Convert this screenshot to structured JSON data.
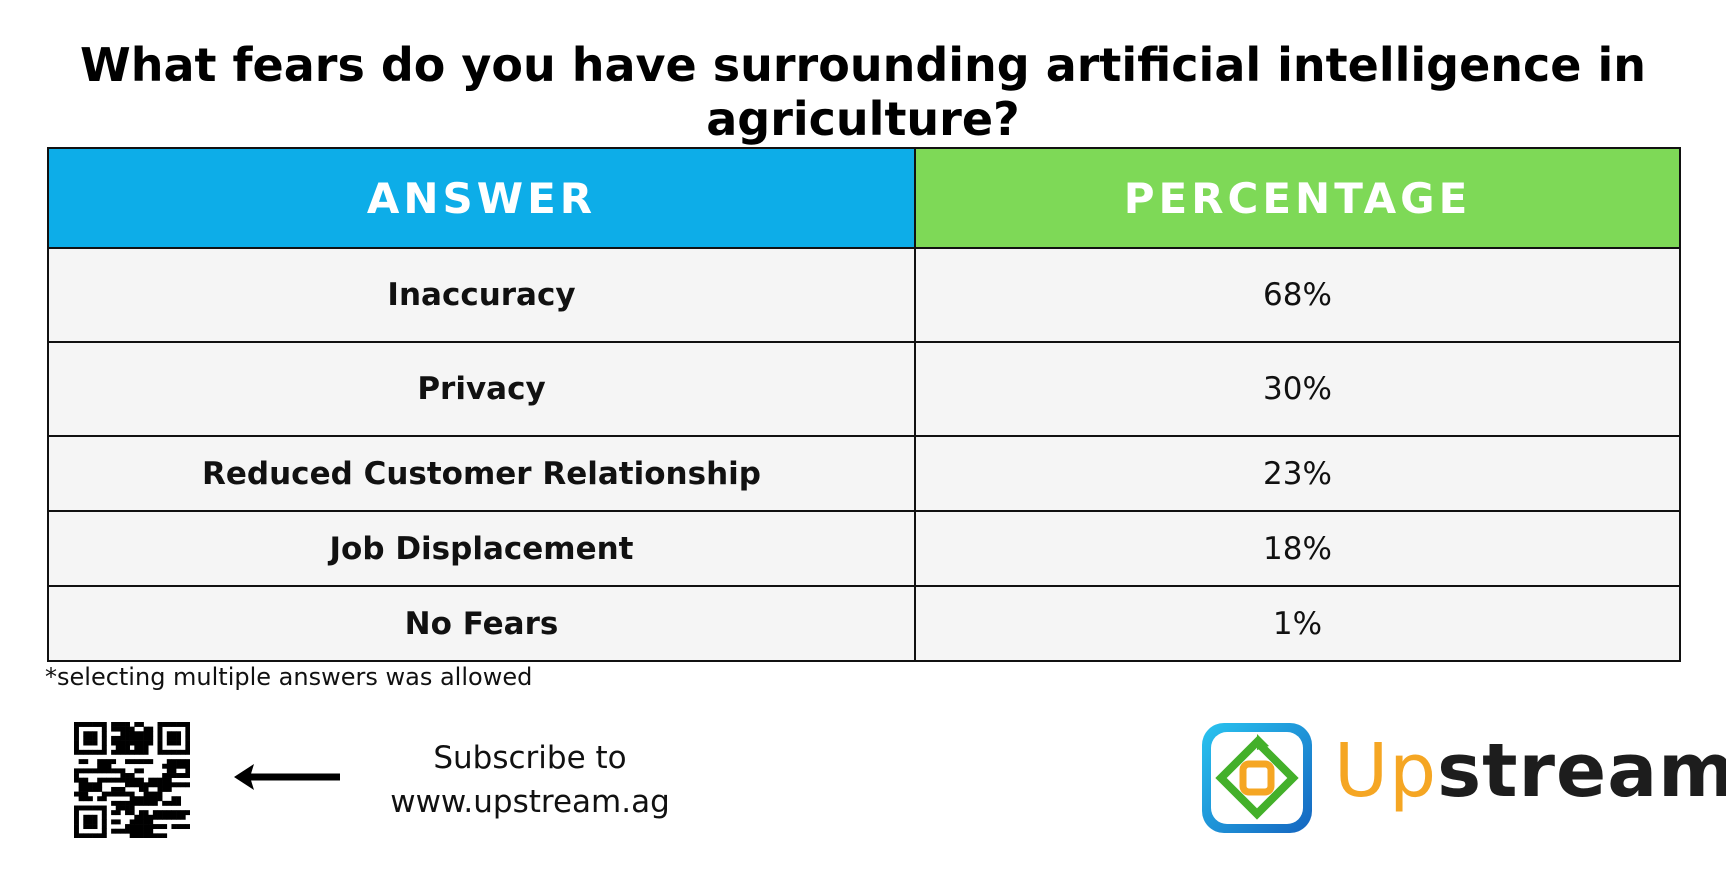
{
  "header": {
    "title": "What fears do you have surrounding artificial intelligence in agriculture?"
  },
  "table": {
    "columns": [
      "ANSWER",
      "PERCENTAGE"
    ],
    "rows": [
      [
        "Inaccuracy",
        "68%"
      ],
      [
        "Privacy",
        "30%"
      ],
      [
        "Reduced Customer Relationship",
        "23%"
      ],
      [
        "Job Displacement",
        "18%"
      ],
      [
        "No Fears",
        "1%"
      ]
    ]
  },
  "footnote": "*selecting multiple answers was allowed",
  "subscribe": [
    "Subscribe to",
    "www.upstream.ag"
  ],
  "logo": {
    "first": "Up",
    "second": "stream"
  }
}
